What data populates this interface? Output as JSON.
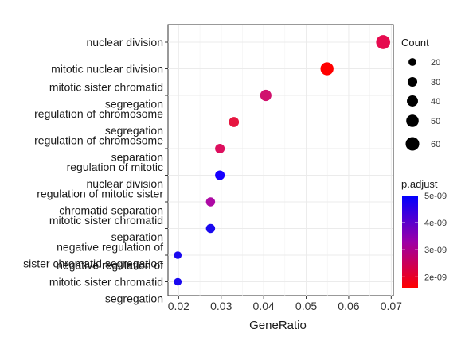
{
  "chart_data": {
    "type": "scatter",
    "xlabel": "GeneRatio",
    "ylabel": "",
    "xlim": [
      0.0175,
      0.0705
    ],
    "x_ticks": [
      "0.02",
      "0.03",
      "0.04",
      "0.05",
      "0.06",
      "0.07"
    ],
    "grid": true,
    "categories": [
      {
        "lines": [
          "nuclear division"
        ],
        "x": 0.0681,
        "count": 64,
        "p_adjust": 2.3e-09,
        "color": "#e60b4f"
      },
      {
        "lines": [
          "mitotic nuclear division"
        ],
        "x": 0.0549,
        "count": 55,
        "p_adjust": 1.6e-09,
        "color": "#ff0000"
      },
      {
        "lines": [
          "mitotic sister chromatid",
          "segregation"
        ],
        "x": 0.0405,
        "count": 41,
        "p_adjust": 2.9e-09,
        "color": "#d0116d"
      },
      {
        "lines": [
          "regulation of chromosome",
          "segregation"
        ],
        "x": 0.033,
        "count": 33,
        "p_adjust": 2.2e-09,
        "color": "#e61640"
      },
      {
        "lines": [
          "regulation of chromosome",
          "separation"
        ],
        "x": 0.0297,
        "count": 30,
        "p_adjust": 2.5e-09,
        "color": "#dd0f5e"
      },
      {
        "lines": [
          "regulation of mitotic",
          "nuclear division"
        ],
        "x": 0.0297,
        "count": 30,
        "p_adjust": 5e-09,
        "color": "#1700ff"
      },
      {
        "lines": [
          "regulation of mitotic sister",
          "chromatid separation"
        ],
        "x": 0.0275,
        "count": 27,
        "p_adjust": 3.6e-09,
        "color": "#ad0aa4"
      },
      {
        "lines": [
          "mitotic sister chromatid",
          "separation"
        ],
        "x": 0.0275,
        "count": 27,
        "p_adjust": 4.9e-09,
        "color": "#1a09ef"
      },
      {
        "lines": [
          "negative regulation of",
          "sister chromatid segregation"
        ],
        "x": 0.0198,
        "count": 19,
        "p_adjust": 4.9e-09,
        "color": "#1a09ef"
      },
      {
        "lines": [
          "negative regulation of",
          "mitotic sister chromatid",
          "segregation"
        ],
        "x": 0.0198,
        "count": 19,
        "p_adjust": 4.9e-09,
        "color": "#1a09ef"
      }
    ],
    "legend": {
      "placement": "right",
      "size": {
        "title": "Count",
        "labels": [
          "20",
          "30",
          "40",
          "50",
          "60"
        ],
        "values": [
          20,
          30,
          40,
          50,
          60
        ]
      },
      "color": {
        "title": "p.adjust",
        "labels": [
          "5e-09",
          "4e-09",
          "3e-09",
          "2e-09"
        ],
        "values": [
          5e-09,
          4e-09,
          3e-09,
          2e-09
        ],
        "range": [
          1.6e-09,
          5e-09
        ],
        "low_color": "#ff0000",
        "high_color": "#0000ff"
      }
    }
  }
}
